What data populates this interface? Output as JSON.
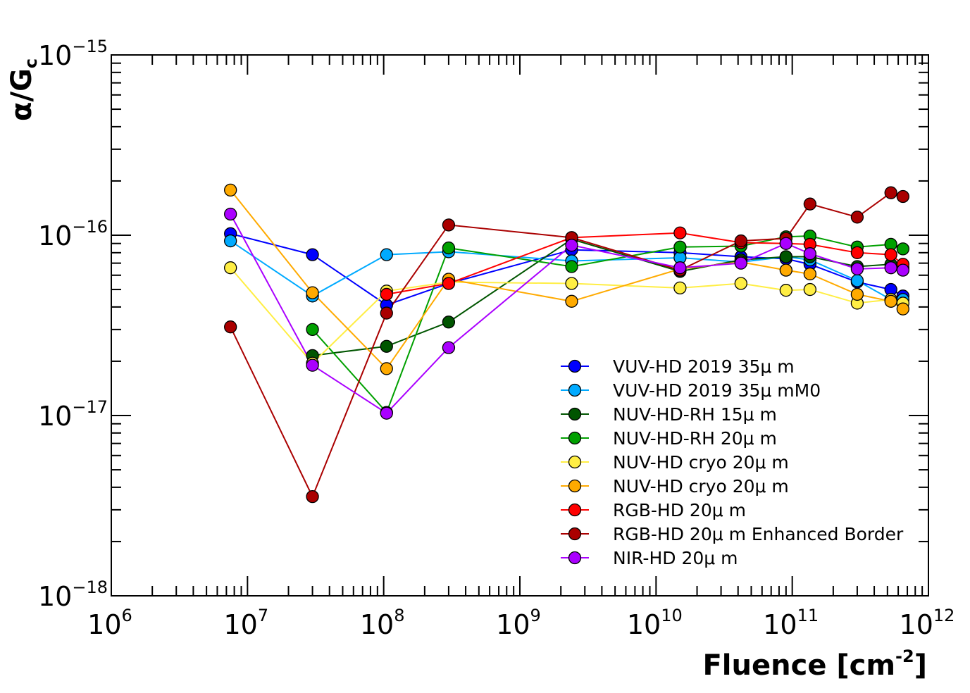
{
  "chart_data": {
    "type": "scatter",
    "xlabel": "Fluence [cm",
    "xlabel_sup": "-2",
    "xlabel_suffix": "]",
    "ylabel_main": "α/G",
    "ylabel_sub": "c",
    "xscale": "log",
    "yscale": "log",
    "xlim": [
      1000000.0,
      1000000000000.0
    ],
    "ylim": [
      1e-18,
      1e-15
    ],
    "grid": false,
    "legend_position": "lower-right",
    "x_ticks": [
      {
        "base": "10",
        "exp": "6"
      },
      {
        "base": "10",
        "exp": "7"
      },
      {
        "base": "10",
        "exp": "8"
      },
      {
        "base": "10",
        "exp": "9"
      },
      {
        "base": "10",
        "exp": "10"
      },
      {
        "base": "10",
        "exp": "11"
      },
      {
        "base": "10",
        "exp": "12"
      }
    ],
    "y_ticks": [
      {
        "base": "10",
        "exp": "−18"
      },
      {
        "base": "10",
        "exp": "−17"
      },
      {
        "base": "10",
        "exp": "−16"
      },
      {
        "base": "10",
        "exp": "−15"
      }
    ],
    "series": [
      {
        "name": "VUV-HD 2019 35μ m",
        "color": "#0000ff",
        "x": [
          7500000.0,
          30000000.0,
          105000000.0,
          300000000.0,
          2400000000.0,
          15000000000.0,
          42000000000.0,
          90000000000.0,
          135000000000.0,
          300000000000.0,
          530000000000.0,
          650000000000.0
        ],
        "y": [
          1.02e-16,
          7.8e-17,
          4.1e-17,
          5.4e-17,
          8.3e-17,
          8e-17,
          7.6e-17,
          7.4e-17,
          6.9e-17,
          5.5e-17,
          5e-17,
          4.6e-17
        ]
      },
      {
        "name": "VUV-HD 2019 35μ mM0",
        "color": "#00aaff",
        "x": [
          7500000.0,
          30000000.0,
          105000000.0,
          300000000.0,
          2400000000.0,
          15000000000.0,
          42000000000.0,
          90000000000.0,
          135000000000.0,
          300000000000.0,
          530000000000.0,
          650000000000.0
        ],
        "y": [
          9.3e-17,
          4.6e-17,
          7.8e-17,
          8.1e-17,
          7.2e-17,
          7.5e-17,
          7.1e-17,
          7.6e-17,
          7.3e-17,
          5.6e-17,
          4.4e-17,
          4.4e-17
        ]
      },
      {
        "name": "NUV-HD-RH 15μ m",
        "color": "#005500",
        "x": [
          30000000.0,
          105000000.0,
          300000000.0,
          2400000000.0,
          15000000000.0,
          42000000000.0,
          90000000000.0,
          135000000000.0,
          300000000000.0,
          530000000000.0,
          650000000000.0
        ],
        "y": [
          2.15e-17,
          2.42e-17,
          3.3e-17,
          9.5e-17,
          6.3e-17,
          7.3e-17,
          7.6e-17,
          7.6e-17,
          6.7e-17,
          6.9e-17,
          6.6e-17
        ]
      },
      {
        "name": "NUV-HD-RH 20μ m",
        "color": "#00a000",
        "x": [
          30000000.0,
          105000000.0,
          300000000.0,
          2400000000.0,
          15000000000.0,
          42000000000.0,
          90000000000.0,
          135000000000.0,
          300000000000.0,
          530000000000.0,
          650000000000.0
        ],
        "y": [
          3e-17,
          1.04e-17,
          8.5e-17,
          6.7e-17,
          8.6e-17,
          8.7e-17,
          9.8e-17,
          9.9e-17,
          8.6e-17,
          8.9e-17,
          8.4e-17
        ]
      },
      {
        "name": "NUV-HD cryo 20μ m",
        "color": "#ffee44",
        "x": [
          7500000.0,
          30000000.0,
          105000000.0,
          300000000.0,
          2400000000.0,
          15000000000.0,
          42000000000.0,
          90000000000.0,
          135000000000.0,
          300000000000.0,
          530000000000.0,
          650000000000.0
        ],
        "y": [
          6.6e-17,
          1.95e-17,
          4.9e-17,
          5.5e-17,
          5.4e-17,
          5.1e-17,
          5.4e-17,
          4.95e-17,
          5e-17,
          4.2e-17,
          4.4e-17,
          4.2e-17
        ]
      },
      {
        "name": "NUV-HD cryo 20μ m",
        "color": "#ffaa00",
        "x": [
          7500000.0,
          30000000.0,
          105000000.0,
          300000000.0,
          2400000000.0,
          15000000000.0,
          42000000000.0,
          90000000000.0,
          135000000000.0,
          300000000000.0,
          530000000000.0,
          650000000000.0
        ],
        "y": [
          1.78e-16,
          4.8e-17,
          1.82e-17,
          5.7e-17,
          4.3e-17,
          6.5e-17,
          7.1e-17,
          6.4e-17,
          6.1e-17,
          4.7e-17,
          4.3e-17,
          3.9e-17
        ]
      },
      {
        "name": "RGB-HD 20μ m",
        "color": "#ff0000",
        "x": [
          105000000.0,
          300000000.0,
          2400000000.0,
          15000000000.0,
          42000000000.0,
          90000000000.0,
          135000000000.0,
          300000000000.0,
          530000000000.0,
          650000000000.0
        ],
        "y": [
          4.7e-17,
          5.4e-17,
          9.7e-17,
          1.03e-16,
          9.1e-17,
          9e-17,
          8.9e-17,
          8e-17,
          7.8e-17,
          6.9e-17
        ]
      },
      {
        "name": "RGB-HD 20μ m Enhanced Border",
        "color": "#aa0000",
        "x": [
          7500000.0,
          30000000.0,
          105000000.0,
          300000000.0,
          2400000000.0,
          15000000000.0,
          42000000000.0,
          90000000000.0,
          135000000000.0,
          300000000000.0,
          530000000000.0,
          650000000000.0
        ],
        "y": [
          3.1e-17,
          3.55e-18,
          3.7e-17,
          1.14e-16,
          9.7e-17,
          6.4e-17,
          9.3e-17,
          9.6e-17,
          1.49e-16,
          1.26e-16,
          1.72e-16,
          1.64e-16
        ]
      },
      {
        "name": "NIR-HD 20μ m",
        "color": "#aa00ff",
        "x": [
          7500000.0,
          30000000.0,
          105000000.0,
          300000000.0,
          2400000000.0,
          15000000000.0,
          42000000000.0,
          90000000000.0,
          135000000000.0,
          300000000000.0,
          530000000000.0,
          650000000000.0
        ],
        "y": [
          1.31e-16,
          1.9e-17,
          1.03e-17,
          2.38e-17,
          8.8e-17,
          6.6e-17,
          7e-17,
          9e-17,
          7.9e-17,
          6.5e-17,
          6.6e-17,
          6.4e-17
        ]
      }
    ]
  }
}
